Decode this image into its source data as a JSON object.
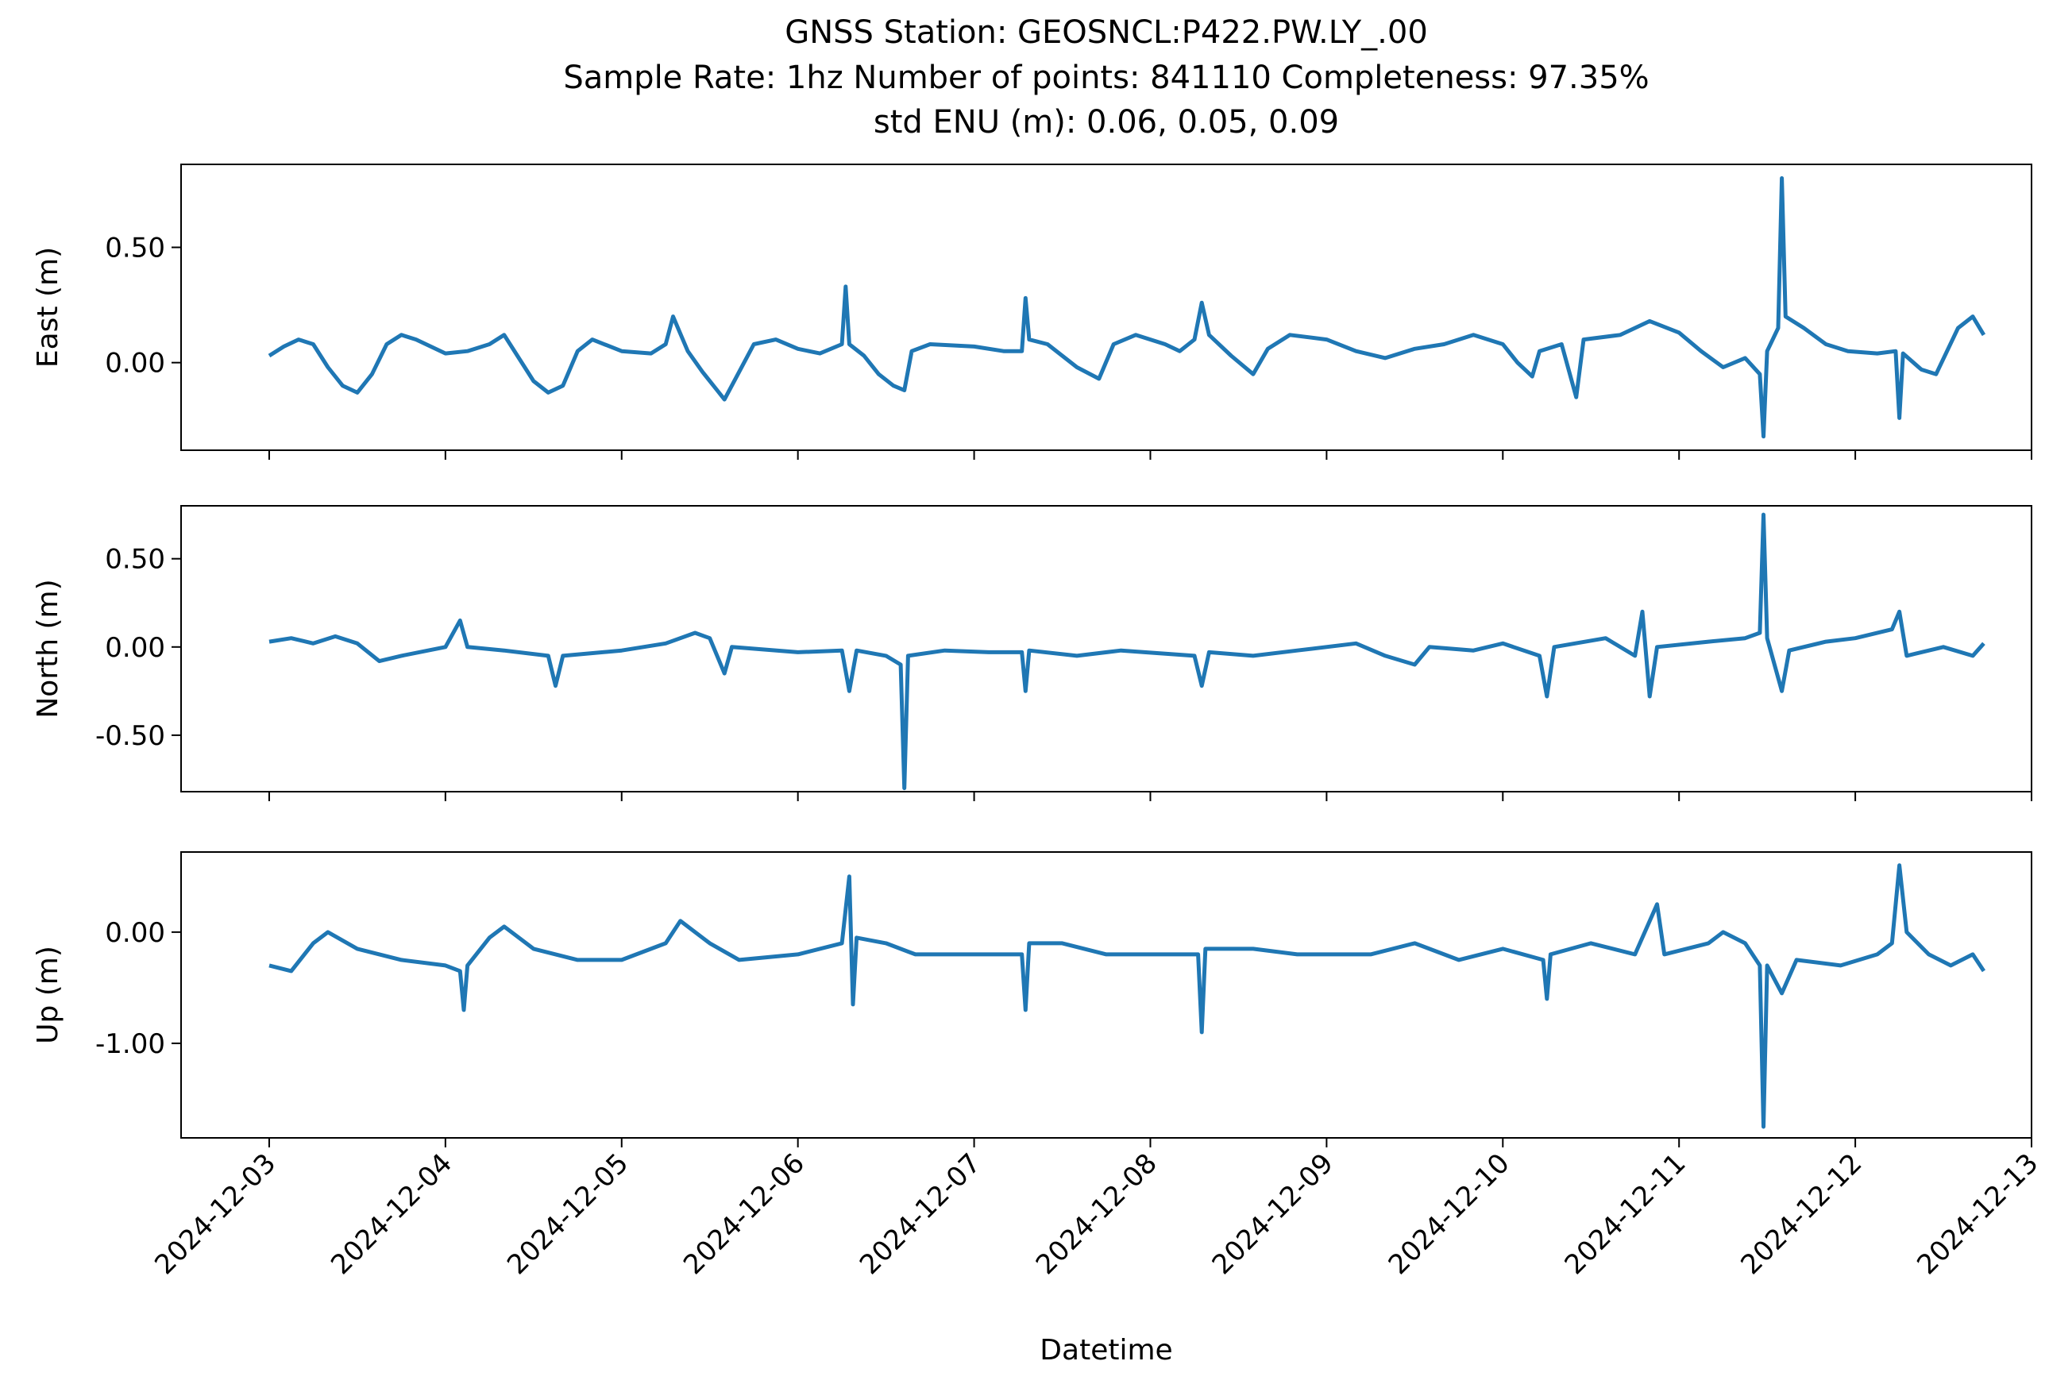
{
  "title_lines": [
    "GNSS Station: GEOSNCL:P422.PW.LY_.00",
    "Sample Rate: 1hz   Number of points: 841110    Completeness:  97.35%",
    "std ENU (m):  0.06, 0.05, 0.09"
  ],
  "chart_data": {
    "type": "line",
    "xlabel": "Datetime",
    "x_range": [
      "2024-12-02T12:00",
      "2024-12-13T00:00"
    ],
    "x_ticks": [
      "2024-12-03",
      "2024-12-04",
      "2024-12-05",
      "2024-12-06",
      "2024-12-07",
      "2024-12-08",
      "2024-12-09",
      "2024-12-10",
      "2024-12-11",
      "2024-12-12",
      "2024-12-13"
    ],
    "line_color": "#1f77b4",
    "panels": [
      {
        "ylabel": "East (m)",
        "ylim": [
          -0.38,
          0.86
        ],
        "yticks": [
          {
            "value": 0.5,
            "label": "0.50"
          },
          {
            "value": 0.0,
            "label": "0.00"
          }
        ],
        "points": [
          [
            "2024-12-03T00:00",
            0.03
          ],
          [
            "2024-12-03T02:00",
            0.07
          ],
          [
            "2024-12-03T04:00",
            0.1
          ],
          [
            "2024-12-03T06:00",
            0.08
          ],
          [
            "2024-12-03T08:00",
            -0.02
          ],
          [
            "2024-12-03T10:00",
            -0.1
          ],
          [
            "2024-12-03T12:00",
            -0.13
          ],
          [
            "2024-12-03T14:00",
            -0.05
          ],
          [
            "2024-12-03T16:00",
            0.08
          ],
          [
            "2024-12-03T18:00",
            0.12
          ],
          [
            "2024-12-03T20:00",
            0.1
          ],
          [
            "2024-12-03T22:00",
            0.07
          ],
          [
            "2024-12-04T00:00",
            0.04
          ],
          [
            "2024-12-04T03:00",
            0.05
          ],
          [
            "2024-12-04T06:00",
            0.08
          ],
          [
            "2024-12-04T08:00",
            0.12
          ],
          [
            "2024-12-04T10:00",
            0.02
          ],
          [
            "2024-12-04T12:00",
            -0.08
          ],
          [
            "2024-12-04T14:00",
            -0.13
          ],
          [
            "2024-12-04T16:00",
            -0.1
          ],
          [
            "2024-12-04T18:00",
            0.05
          ],
          [
            "2024-12-04T20:00",
            0.1
          ],
          [
            "2024-12-05T00:00",
            0.05
          ],
          [
            "2024-12-05T04:00",
            0.04
          ],
          [
            "2024-12-05T06:00",
            0.08
          ],
          [
            "2024-12-05T07:00",
            0.2
          ],
          [
            "2024-12-05T09:00",
            0.05
          ],
          [
            "2024-12-05T11:00",
            -0.04
          ],
          [
            "2024-12-05T13:00",
            -0.12
          ],
          [
            "2024-12-05T14:00",
            -0.16
          ],
          [
            "2024-12-05T16:00",
            -0.04
          ],
          [
            "2024-12-05T18:00",
            0.08
          ],
          [
            "2024-12-05T21:00",
            0.1
          ],
          [
            "2024-12-06T00:00",
            0.06
          ],
          [
            "2024-12-06T03:00",
            0.04
          ],
          [
            "2024-12-06T06:00",
            0.08
          ],
          [
            "2024-12-06T06:30",
            0.33
          ],
          [
            "2024-12-06T07:00",
            0.08
          ],
          [
            "2024-12-06T09:00",
            0.03
          ],
          [
            "2024-12-06T11:00",
            -0.05
          ],
          [
            "2024-12-06T13:00",
            -0.1
          ],
          [
            "2024-12-06T14:30",
            -0.12
          ],
          [
            "2024-12-06T15:30",
            0.05
          ],
          [
            "2024-12-06T18:00",
            0.08
          ],
          [
            "2024-12-07T00:00",
            0.07
          ],
          [
            "2024-12-07T04:00",
            0.05
          ],
          [
            "2024-12-07T06:30",
            0.05
          ],
          [
            "2024-12-07T07:00",
            0.28
          ],
          [
            "2024-12-07T07:30",
            0.1
          ],
          [
            "2024-12-07T10:00",
            0.08
          ],
          [
            "2024-12-07T14:00",
            -0.02
          ],
          [
            "2024-12-07T17:00",
            -0.07
          ],
          [
            "2024-12-07T19:00",
            0.08
          ],
          [
            "2024-12-07T22:00",
            0.12
          ],
          [
            "2024-12-08T02:00",
            0.08
          ],
          [
            "2024-12-08T04:00",
            0.05
          ],
          [
            "2024-12-08T06:00",
            0.1
          ],
          [
            "2024-12-08T07:00",
            0.26
          ],
          [
            "2024-12-08T08:00",
            0.12
          ],
          [
            "2024-12-08T11:00",
            0.03
          ],
          [
            "2024-12-08T14:00",
            -0.05
          ],
          [
            "2024-12-08T16:00",
            0.06
          ],
          [
            "2024-12-08T19:00",
            0.12
          ],
          [
            "2024-12-09T00:00",
            0.1
          ],
          [
            "2024-12-09T04:00",
            0.05
          ],
          [
            "2024-12-09T08:00",
            0.02
          ],
          [
            "2024-12-09T12:00",
            0.06
          ],
          [
            "2024-12-09T16:00",
            0.08
          ],
          [
            "2024-12-09T20:00",
            0.12
          ],
          [
            "2024-12-10T00:00",
            0.08
          ],
          [
            "2024-12-10T02:00",
            0.0
          ],
          [
            "2024-12-10T04:00",
            -0.06
          ],
          [
            "2024-12-10T05:00",
            0.05
          ],
          [
            "2024-12-10T08:00",
            0.08
          ],
          [
            "2024-12-10T10:00",
            -0.15
          ],
          [
            "2024-12-10T11:00",
            0.1
          ],
          [
            "2024-12-10T16:00",
            0.12
          ],
          [
            "2024-12-10T20:00",
            0.18
          ],
          [
            "2024-12-11T00:00",
            0.13
          ],
          [
            "2024-12-11T03:00",
            0.05
          ],
          [
            "2024-12-11T06:00",
            -0.02
          ],
          [
            "2024-12-11T09:00",
            0.02
          ],
          [
            "2024-12-11T11:00",
            -0.05
          ],
          [
            "2024-12-11T11:30",
            -0.32
          ],
          [
            "2024-12-11T12:00",
            0.05
          ],
          [
            "2024-12-11T13:30",
            0.15
          ],
          [
            "2024-12-11T14:00",
            0.8
          ],
          [
            "2024-12-11T14:30",
            0.2
          ],
          [
            "2024-12-11T17:00",
            0.15
          ],
          [
            "2024-12-11T20:00",
            0.08
          ],
          [
            "2024-12-11T23:00",
            0.05
          ],
          [
            "2024-12-12T03:00",
            0.04
          ],
          [
            "2024-12-12T05:30",
            0.05
          ],
          [
            "2024-12-12T06:00",
            -0.24
          ],
          [
            "2024-12-12T06:30",
            0.04
          ],
          [
            "2024-12-12T09:00",
            -0.03
          ],
          [
            "2024-12-12T11:00",
            -0.05
          ],
          [
            "2024-12-12T14:00",
            0.15
          ],
          [
            "2024-12-12T16:00",
            0.2
          ],
          [
            "2024-12-12T17:30",
            0.12
          ]
        ]
      },
      {
        "ylabel": "North (m)",
        "ylim": [
          -0.82,
          0.8
        ],
        "yticks": [
          {
            "value": 0.5,
            "label": "0.50"
          },
          {
            "value": 0.0,
            "label": "0.00"
          },
          {
            "value": -0.5,
            "label": "-0.50"
          }
        ],
        "points": [
          [
            "2024-12-03T00:00",
            0.03
          ],
          [
            "2024-12-03T03:00",
            0.05
          ],
          [
            "2024-12-03T06:00",
            0.02
          ],
          [
            "2024-12-03T09:00",
            0.06
          ],
          [
            "2024-12-03T12:00",
            0.02
          ],
          [
            "2024-12-03T15:00",
            -0.08
          ],
          [
            "2024-12-03T18:00",
            -0.05
          ],
          [
            "2024-12-04T00:00",
            0.0
          ],
          [
            "2024-12-04T02:00",
            0.15
          ],
          [
            "2024-12-04T03:00",
            0.0
          ],
          [
            "2024-12-04T08:00",
            -0.02
          ],
          [
            "2024-12-04T14:00",
            -0.05
          ],
          [
            "2024-12-04T15:00",
            -0.22
          ],
          [
            "2024-12-04T16:00",
            -0.05
          ],
          [
            "2024-12-05T00:00",
            -0.02
          ],
          [
            "2024-12-05T06:00",
            0.02
          ],
          [
            "2024-12-05T10:00",
            0.08
          ],
          [
            "2024-12-05T12:00",
            0.05
          ],
          [
            "2024-12-05T14:00",
            -0.15
          ],
          [
            "2024-12-05T15:00",
            0.0
          ],
          [
            "2024-12-06T00:00",
            -0.03
          ],
          [
            "2024-12-06T06:00",
            -0.02
          ],
          [
            "2024-12-06T07:00",
            -0.25
          ],
          [
            "2024-12-06T08:00",
            -0.02
          ],
          [
            "2024-12-06T12:00",
            -0.05
          ],
          [
            "2024-12-06T14:00",
            -0.1
          ],
          [
            "2024-12-06T14:30",
            -0.8
          ],
          [
            "2024-12-06T15:00",
            -0.05
          ],
          [
            "2024-12-06T20:00",
            -0.02
          ],
          [
            "2024-12-07T02:00",
            -0.03
          ],
          [
            "2024-12-07T06:30",
            -0.03
          ],
          [
            "2024-12-07T07:00",
            -0.25
          ],
          [
            "2024-12-07T07:30",
            -0.02
          ],
          [
            "2024-12-07T14:00",
            -0.05
          ],
          [
            "2024-12-07T20:00",
            -0.02
          ],
          [
            "2024-12-08T06:00",
            -0.05
          ],
          [
            "2024-12-08T07:00",
            -0.22
          ],
          [
            "2024-12-08T08:00",
            -0.03
          ],
          [
            "2024-12-08T14:00",
            -0.05
          ],
          [
            "2024-12-08T20:00",
            -0.02
          ],
          [
            "2024-12-09T04:00",
            0.02
          ],
          [
            "2024-12-09T08:00",
            -0.05
          ],
          [
            "2024-12-09T12:00",
            -0.1
          ],
          [
            "2024-12-09T14:00",
            0.0
          ],
          [
            "2024-12-09T20:00",
            -0.02
          ],
          [
            "2024-12-10T00:00",
            0.02
          ],
          [
            "2024-12-10T05:00",
            -0.05
          ],
          [
            "2024-12-10T06:00",
            -0.28
          ],
          [
            "2024-12-10T07:00",
            0.0
          ],
          [
            "2024-12-10T14:00",
            0.05
          ],
          [
            "2024-12-10T18:00",
            -0.05
          ],
          [
            "2024-12-10T19:00",
            0.2
          ],
          [
            "2024-12-10T20:00",
            -0.28
          ],
          [
            "2024-12-10T21:00",
            0.0
          ],
          [
            "2024-12-11T04:00",
            0.03
          ],
          [
            "2024-12-11T09:00",
            0.05
          ],
          [
            "2024-12-11T11:00",
            0.08
          ],
          [
            "2024-12-11T11:30",
            0.75
          ],
          [
            "2024-12-11T12:00",
            0.05
          ],
          [
            "2024-12-11T14:00",
            -0.25
          ],
          [
            "2024-12-11T15:00",
            -0.02
          ],
          [
            "2024-12-11T20:00",
            0.03
          ],
          [
            "2024-12-12T00:00",
            0.05
          ],
          [
            "2024-12-12T05:00",
            0.1
          ],
          [
            "2024-12-12T06:00",
            0.2
          ],
          [
            "2024-12-12T07:00",
            -0.05
          ],
          [
            "2024-12-12T12:00",
            0.0
          ],
          [
            "2024-12-12T16:00",
            -0.05
          ],
          [
            "2024-12-12T17:30",
            0.02
          ]
        ]
      },
      {
        "ylabel": "Up (m)",
        "ylim": [
          -1.85,
          0.72
        ],
        "yticks": [
          {
            "value": 0.0,
            "label": "0.00"
          },
          {
            "value": -1.0,
            "label": "-1.00"
          }
        ],
        "points": [
          [
            "2024-12-03T00:00",
            -0.3
          ],
          [
            "2024-12-03T03:00",
            -0.35
          ],
          [
            "2024-12-03T06:00",
            -0.1
          ],
          [
            "2024-12-03T08:00",
            0.0
          ],
          [
            "2024-12-03T12:00",
            -0.15
          ],
          [
            "2024-12-03T18:00",
            -0.25
          ],
          [
            "2024-12-04T00:00",
            -0.3
          ],
          [
            "2024-12-04T02:00",
            -0.35
          ],
          [
            "2024-12-04T02:30",
            -0.7
          ],
          [
            "2024-12-04T03:00",
            -0.3
          ],
          [
            "2024-12-04T06:00",
            -0.05
          ],
          [
            "2024-12-04T08:00",
            0.05
          ],
          [
            "2024-12-04T12:00",
            -0.15
          ],
          [
            "2024-12-04T18:00",
            -0.25
          ],
          [
            "2024-12-05T00:00",
            -0.25
          ],
          [
            "2024-12-05T06:00",
            -0.1
          ],
          [
            "2024-12-05T08:00",
            0.1
          ],
          [
            "2024-12-05T12:00",
            -0.1
          ],
          [
            "2024-12-05T16:00",
            -0.25
          ],
          [
            "2024-12-06T00:00",
            -0.2
          ],
          [
            "2024-12-06T06:00",
            -0.1
          ],
          [
            "2024-12-06T07:00",
            0.5
          ],
          [
            "2024-12-06T07:30",
            -0.65
          ],
          [
            "2024-12-06T08:00",
            -0.05
          ],
          [
            "2024-12-06T12:00",
            -0.1
          ],
          [
            "2024-12-06T16:00",
            -0.2
          ],
          [
            "2024-12-07T00:00",
            -0.2
          ],
          [
            "2024-12-07T06:30",
            -0.2
          ],
          [
            "2024-12-07T07:00",
            -0.7
          ],
          [
            "2024-12-07T07:30",
            -0.1
          ],
          [
            "2024-12-07T12:00",
            -0.1
          ],
          [
            "2024-12-07T18:00",
            -0.2
          ],
          [
            "2024-12-08T00:00",
            -0.2
          ],
          [
            "2024-12-08T06:30",
            -0.2
          ],
          [
            "2024-12-08T07:00",
            -0.9
          ],
          [
            "2024-12-08T07:30",
            -0.15
          ],
          [
            "2024-12-08T14:00",
            -0.15
          ],
          [
            "2024-12-08T20:00",
            -0.2
          ],
          [
            "2024-12-09T06:00",
            -0.2
          ],
          [
            "2024-12-09T12:00",
            -0.1
          ],
          [
            "2024-12-09T18:00",
            -0.25
          ],
          [
            "2024-12-10T00:00",
            -0.15
          ],
          [
            "2024-12-10T05:30",
            -0.25
          ],
          [
            "2024-12-10T06:00",
            -0.6
          ],
          [
            "2024-12-10T06:30",
            -0.2
          ],
          [
            "2024-12-10T12:00",
            -0.1
          ],
          [
            "2024-12-10T18:00",
            -0.2
          ],
          [
            "2024-12-10T21:00",
            0.25
          ],
          [
            "2024-12-10T22:00",
            -0.2
          ],
          [
            "2024-12-11T04:00",
            -0.1
          ],
          [
            "2024-12-11T06:00",
            0.0
          ],
          [
            "2024-12-11T09:00",
            -0.1
          ],
          [
            "2024-12-11T11:00",
            -0.3
          ],
          [
            "2024-12-11T11:30",
            -1.75
          ],
          [
            "2024-12-11T12:00",
            -0.3
          ],
          [
            "2024-12-11T14:00",
            -0.55
          ],
          [
            "2024-12-11T16:00",
            -0.25
          ],
          [
            "2024-12-11T22:00",
            -0.3
          ],
          [
            "2024-12-12T03:00",
            -0.2
          ],
          [
            "2024-12-12T05:00",
            -0.1
          ],
          [
            "2024-12-12T06:00",
            0.6
          ],
          [
            "2024-12-12T07:00",
            0.0
          ],
          [
            "2024-12-12T10:00",
            -0.2
          ],
          [
            "2024-12-12T13:00",
            -0.3
          ],
          [
            "2024-12-12T16:00",
            -0.2
          ],
          [
            "2024-12-12T17:30",
            -0.35
          ]
        ]
      }
    ]
  }
}
